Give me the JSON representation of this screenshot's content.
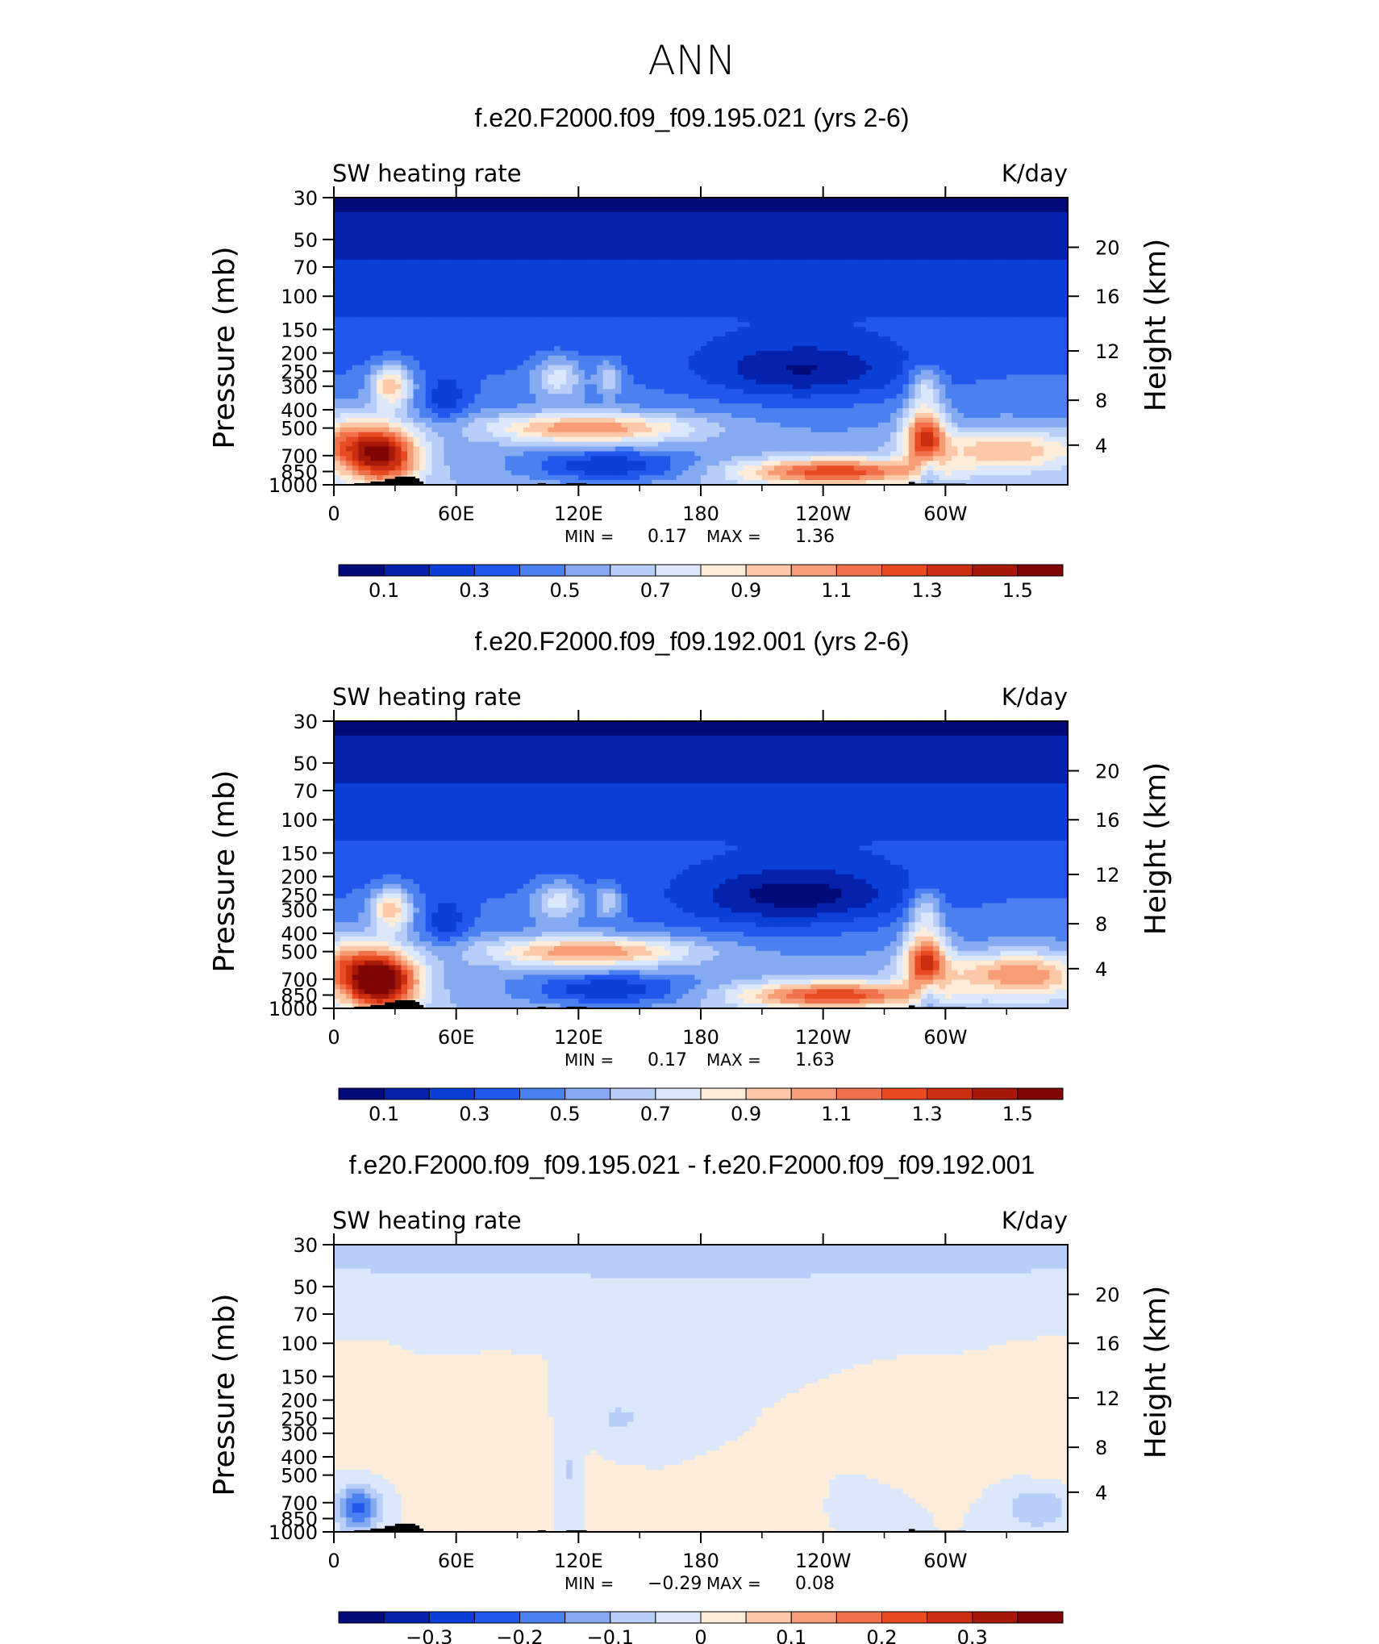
{
  "figure": {
    "title": "ANN"
  },
  "chart_data": [
    {
      "type": "heatmap",
      "title": "f.e20.F2000.f09_f09.195.021 (yrs 2-6)",
      "subtitle_left": "SW heating rate",
      "subtitle_right": "K/day",
      "ylabel": "Pressure (mb)",
      "ylabel_right": "Height (km)",
      "x_ticks": [
        "0",
        "60E",
        "120E",
        "180",
        "120W",
        "60W"
      ],
      "y_ticks": [
        "30",
        "50",
        "70",
        "100",
        "150",
        "200",
        "250",
        "300",
        "400",
        "500",
        "700",
        "850",
        "1000"
      ],
      "y_ticks_right": [
        "20",
        "16",
        "12",
        "8",
        "4"
      ],
      "xlim": [
        0,
        360
      ],
      "ylim": [
        1000,
        30
      ],
      "y_scale": "log",
      "min_label": "MIN =",
      "min_value": "0.17",
      "max_label": "MAX =",
      "max_value": "1.36",
      "colorbar_labels": [
        "0.1",
        "0.3",
        "0.5",
        "0.7",
        "0.9",
        "1.1",
        "1.3",
        "1.5"
      ],
      "colorbar_colors": [
        "#020b7a",
        "#0522ad",
        "#0a3fd8",
        "#2058ee",
        "#4b80f0",
        "#86aaf2",
        "#b8cdf7",
        "#dbe8fb",
        "#fdecd9",
        "#fbc8a8",
        "#f79d75",
        "#f1714a",
        "#e84a22",
        "#cc2e12",
        "#a6190a",
        "#7f0604"
      ],
      "value_breaks": [
        0.1,
        0.2,
        0.3,
        0.4,
        0.5,
        0.6,
        0.7,
        0.8,
        0.9,
        1.0,
        1.1,
        1.2,
        1.3,
        1.4,
        1.5
      ]
    },
    {
      "type": "heatmap",
      "title": "f.e20.F2000.f09_f09.192.001 (yrs 2-6)",
      "subtitle_left": "SW heating rate",
      "subtitle_right": "K/day",
      "ylabel": "Pressure (mb)",
      "ylabel_right": "Height (km)",
      "x_ticks": [
        "0",
        "60E",
        "120E",
        "180",
        "120W",
        "60W"
      ],
      "y_ticks": [
        "30",
        "50",
        "70",
        "100",
        "150",
        "200",
        "250",
        "300",
        "400",
        "500",
        "700",
        "850",
        "1000"
      ],
      "y_ticks_right": [
        "20",
        "16",
        "12",
        "8",
        "4"
      ],
      "xlim": [
        0,
        360
      ],
      "ylim": [
        1000,
        30
      ],
      "y_scale": "log",
      "min_label": "MIN =",
      "min_value": "0.17",
      "max_label": "MAX =",
      "max_value": "1.63",
      "colorbar_labels": [
        "0.1",
        "0.3",
        "0.5",
        "0.7",
        "0.9",
        "1.1",
        "1.3",
        "1.5"
      ],
      "colorbar_colors": [
        "#020b7a",
        "#0522ad",
        "#0a3fd8",
        "#2058ee",
        "#4b80f0",
        "#86aaf2",
        "#b8cdf7",
        "#dbe8fb",
        "#fdecd9",
        "#fbc8a8",
        "#f79d75",
        "#f1714a",
        "#e84a22",
        "#cc2e12",
        "#a6190a",
        "#7f0604"
      ],
      "value_breaks": [
        0.1,
        0.2,
        0.3,
        0.4,
        0.5,
        0.6,
        0.7,
        0.8,
        0.9,
        1.0,
        1.1,
        1.2,
        1.3,
        1.4,
        1.5
      ]
    },
    {
      "type": "heatmap",
      "title": "f.e20.F2000.f09_f09.195.021 - f.e20.F2000.f09_f09.192.001",
      "subtitle_left": "SW heating rate",
      "subtitle_right": "K/day",
      "ylabel": "Pressure (mb)",
      "ylabel_right": "Height (km)",
      "x_ticks": [
        "0",
        "60E",
        "120E",
        "180",
        "120W",
        "60W"
      ],
      "y_ticks": [
        "30",
        "50",
        "70",
        "100",
        "150",
        "200",
        "250",
        "300",
        "400",
        "500",
        "700",
        "850",
        "1000"
      ],
      "y_ticks_right": [
        "20",
        "16",
        "12",
        "8",
        "4"
      ],
      "xlim": [
        0,
        360
      ],
      "ylim": [
        1000,
        30
      ],
      "y_scale": "log",
      "min_label": "MIN =",
      "min_value": "−0.29",
      "max_label": "MAX =",
      "max_value": "0.08",
      "colorbar_labels": [
        "−0.3",
        "−0.2",
        "−0.1",
        "0",
        "0.1",
        "0.2",
        "0.3"
      ],
      "colorbar_colors": [
        "#020b7a",
        "#0522ad",
        "#0a3fd8",
        "#2058ee",
        "#4b80f0",
        "#86aaf2",
        "#b8cdf7",
        "#dbe8fb",
        "#fdecd9",
        "#fbc8a8",
        "#f79d75",
        "#f1714a",
        "#e84a22",
        "#cc2e12",
        "#a6190a",
        "#7f0604"
      ],
      "value_breaks": [
        -0.35,
        -0.3,
        -0.25,
        -0.2,
        -0.15,
        -0.1,
        -0.05,
        0,
        0.05,
        0.1,
        0.15,
        0.2,
        0.25,
        0.3,
        0.35
      ]
    }
  ]
}
